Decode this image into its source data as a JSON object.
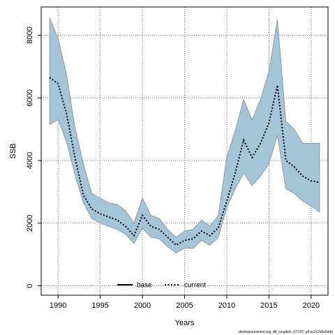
{
  "chart_data": {
    "type": "line",
    "xlabel": "Years",
    "ylabel": "SSB",
    "xlim": [
      1988,
      2022
    ],
    "ylim": [
      -300,
      8900
    ],
    "x_ticks": [
      1990,
      1995,
      2000,
      2005,
      2010,
      2015,
      2020
    ],
    "y_ticks": [
      0,
      2000,
      4000,
      6000,
      8000
    ],
    "grid": true,
    "legend_position": "bottom-center",
    "legend": [
      {
        "label": "base",
        "style": "solid",
        "color": "#000000"
      },
      {
        "label": "current",
        "style": "dotted",
        "color": "#000000"
      }
    ],
    "band_color": "#a3c5d7",
    "band_edge_color": "#8a8a8a",
    "x": [
      1989,
      1990,
      1991,
      1992,
      1993,
      1994,
      1995,
      1996,
      1997,
      1998,
      1999,
      2000,
      2001,
      2002,
      2003,
      2004,
      2005,
      2006,
      2007,
      2008,
      2009,
      2010,
      2011,
      2012,
      2013,
      2014,
      2015,
      2016,
      2017,
      2018,
      2019,
      2020,
      2021
    ],
    "series": [
      {
        "name": "current",
        "values": [
          6650,
          6450,
          5500,
          4100,
          2900,
          2450,
          2300,
          2200,
          2100,
          1900,
          1600,
          2250,
          1900,
          1800,
          1550,
          1300,
          1450,
          1500,
          1750,
          1600,
          1850,
          2700,
          3600,
          4650,
          4100,
          4550,
          5200,
          6400,
          4000,
          3800,
          3500,
          3350,
          3300
        ],
        "lower": [
          5150,
          5300,
          4600,
          3550,
          2650,
          2150,
          2000,
          1900,
          1800,
          1650,
          1350,
          1850,
          1550,
          1500,
          1250,
          1050,
          1200,
          1200,
          1450,
          1300,
          1550,
          2500,
          3100,
          3600,
          3200,
          3500,
          3900,
          4800,
          3100,
          2950,
          2700,
          2550,
          2350
        ],
        "upper": [
          8550,
          7900,
          6750,
          5050,
          3900,
          2950,
          2800,
          2650,
          2600,
          2400,
          2000,
          2800,
          2250,
          2150,
          1800,
          1550,
          1750,
          1800,
          2100,
          1900,
          2250,
          4100,
          4950,
          5950,
          5300,
          5950,
          6850,
          8500,
          5250,
          5000,
          4550,
          4550,
          4550
        ]
      }
    ],
    "caption": "stockassessment.org, All_coupled, r17137, git:ec2c2a0c6dde"
  }
}
